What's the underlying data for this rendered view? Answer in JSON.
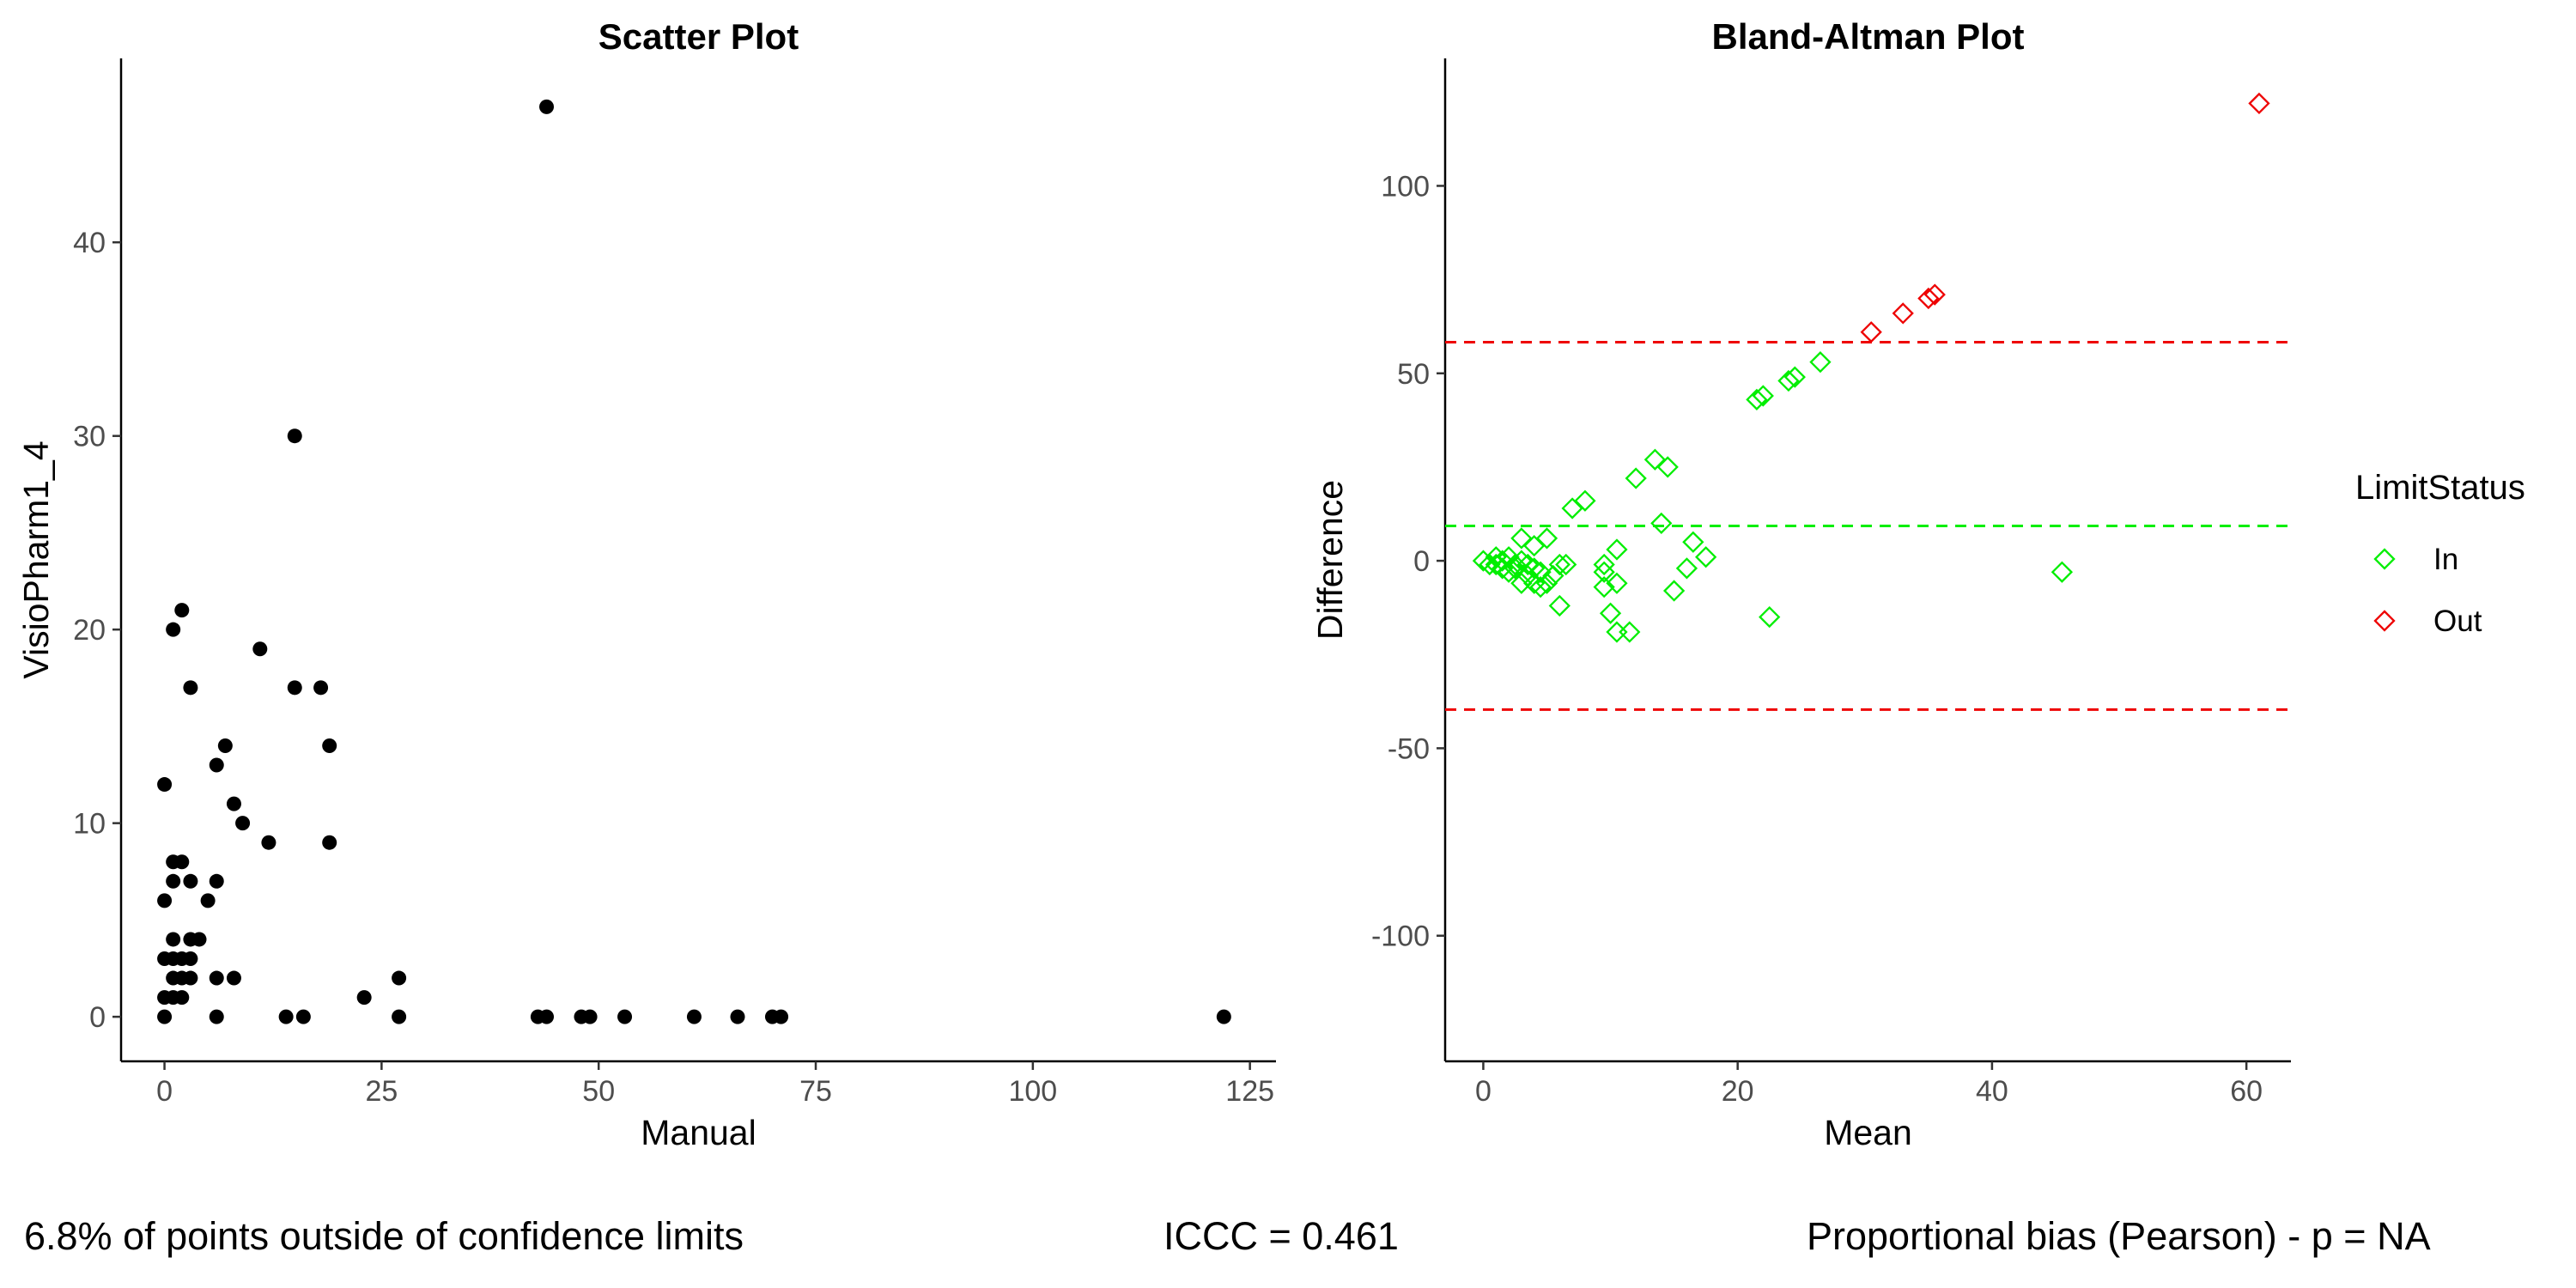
{
  "chart_data": [
    {
      "type": "scatter",
      "title": "Scatter Plot",
      "xlabel": "Manual",
      "ylabel": "VisioPharm1_4",
      "xlim": [
        -5,
        128
      ],
      "ylim": [
        -2.3,
        49.5
      ],
      "xticks": [
        "0",
        "25",
        "50",
        "75",
        "100",
        "125"
      ],
      "yticks": [
        "0",
        "10",
        "20",
        "30",
        "40"
      ],
      "grid": false,
      "marker": "filled circle",
      "color": "#000000",
      "points": [
        {
          "x": 0,
          "y": 0
        },
        {
          "x": 0,
          "y": 1
        },
        {
          "x": 0,
          "y": 3
        },
        {
          "x": 0,
          "y": 6
        },
        {
          "x": 0,
          "y": 12
        },
        {
          "x": 1,
          "y": 1
        },
        {
          "x": 1,
          "y": 2
        },
        {
          "x": 1,
          "y": 3
        },
        {
          "x": 1,
          "y": 4
        },
        {
          "x": 1,
          "y": 7
        },
        {
          "x": 1,
          "y": 8
        },
        {
          "x": 1,
          "y": 20
        },
        {
          "x": 2,
          "y": 1
        },
        {
          "x": 2,
          "y": 2
        },
        {
          "x": 2,
          "y": 3
        },
        {
          "x": 2,
          "y": 8
        },
        {
          "x": 2,
          "y": 21
        },
        {
          "x": 3,
          "y": 2
        },
        {
          "x": 3,
          "y": 3
        },
        {
          "x": 3,
          "y": 4
        },
        {
          "x": 3,
          "y": 7
        },
        {
          "x": 3,
          "y": 17
        },
        {
          "x": 4,
          "y": 4
        },
        {
          "x": 5,
          "y": 6
        },
        {
          "x": 6,
          "y": 0
        },
        {
          "x": 6,
          "y": 2
        },
        {
          "x": 6,
          "y": 7
        },
        {
          "x": 6,
          "y": 13
        },
        {
          "x": 7,
          "y": 14
        },
        {
          "x": 8,
          "y": 2
        },
        {
          "x": 8,
          "y": 11
        },
        {
          "x": 9,
          "y": 10
        },
        {
          "x": 11,
          "y": 19
        },
        {
          "x": 12,
          "y": 9
        },
        {
          "x": 14,
          "y": 0
        },
        {
          "x": 15,
          "y": 17
        },
        {
          "x": 15,
          "y": 30
        },
        {
          "x": 16,
          "y": 0
        },
        {
          "x": 18,
          "y": 17
        },
        {
          "x": 19,
          "y": 9
        },
        {
          "x": 19,
          "y": 14
        },
        {
          "x": 23,
          "y": 1
        },
        {
          "x": 27,
          "y": 0
        },
        {
          "x": 27,
          "y": 2
        },
        {
          "x": 43,
          "y": 0
        },
        {
          "x": 44,
          "y": 0
        },
        {
          "x": 44,
          "y": 47
        },
        {
          "x": 48,
          "y": 0
        },
        {
          "x": 49,
          "y": 0
        },
        {
          "x": 53,
          "y": 0
        },
        {
          "x": 61,
          "y": 0
        },
        {
          "x": 66,
          "y": 0
        },
        {
          "x": 70,
          "y": 0
        },
        {
          "x": 71,
          "y": 0
        },
        {
          "x": 122,
          "y": 0
        }
      ]
    },
    {
      "type": "scatter",
      "title": "Bland-Altman Plot",
      "xlabel": "Mean",
      "ylabel": "Difference",
      "xlim": [
        -3,
        63.5
      ],
      "ylim": [
        -133.5,
        134
      ],
      "xticks": [
        "0",
        "20",
        "40",
        "60"
      ],
      "yticks": [
        "-100",
        "-50",
        "0",
        "50",
        "100"
      ],
      "grid": false,
      "marker": "open diamond",
      "legend": {
        "title": "LimitStatus",
        "placement": "right",
        "entries": [
          {
            "label": "In",
            "color": "#00ee00"
          },
          {
            "label": "Out",
            "color": "#ee0000"
          }
        ]
      },
      "reference_lines": [
        {
          "y": 58.3,
          "color": "#ee0000",
          "style": "dashed"
        },
        {
          "y": 9.3,
          "color": "#00ee00",
          "style": "dashed"
        },
        {
          "y": -39.7,
          "color": "#ee0000",
          "style": "dashed"
        }
      ],
      "series": [
        {
          "name": "In",
          "color": "#00ee00",
          "points": [
            {
              "x": 0,
              "y": 0
            },
            {
              "x": 0.5,
              "y": -1
            },
            {
              "x": 1,
              "y": 1
            },
            {
              "x": 1,
              "y": -1
            },
            {
              "x": 1.5,
              "y": 0
            },
            {
              "x": 1.5,
              "y": -2
            },
            {
              "x": 2,
              "y": 1
            },
            {
              "x": 2,
              "y": -3
            },
            {
              "x": 2.5,
              "y": -1
            },
            {
              "x": 2.5,
              "y": -2
            },
            {
              "x": 3,
              "y": 0
            },
            {
              "x": 3,
              "y": 6
            },
            {
              "x": 3,
              "y": -6
            },
            {
              "x": 3.5,
              "y": -1
            },
            {
              "x": 3.5,
              "y": -4
            },
            {
              "x": 4,
              "y": 4
            },
            {
              "x": 4,
              "y": -2
            },
            {
              "x": 4,
              "y": -6
            },
            {
              "x": 4.5,
              "y": -3
            },
            {
              "x": 4.5,
              "y": -7
            },
            {
              "x": 5,
              "y": -6
            },
            {
              "x": 5,
              "y": 6
            },
            {
              "x": 5.5,
              "y": -4
            },
            {
              "x": 6,
              "y": -12
            },
            {
              "x": 6,
              "y": -1
            },
            {
              "x": 6.5,
              "y": -1
            },
            {
              "x": 7,
              "y": 14
            },
            {
              "x": 8,
              "y": 16
            },
            {
              "x": 9.5,
              "y": -1
            },
            {
              "x": 9.5,
              "y": -3
            },
            {
              "x": 9.5,
              "y": -7
            },
            {
              "x": 10,
              "y": -14
            },
            {
              "x": 10.5,
              "y": -6
            },
            {
              "x": 10.5,
              "y": 3
            },
            {
              "x": 10.5,
              "y": -19
            },
            {
              "x": 11.5,
              "y": -19
            },
            {
              "x": 12,
              "y": 22
            },
            {
              "x": 13.5,
              "y": 27
            },
            {
              "x": 14,
              "y": 10
            },
            {
              "x": 14.5,
              "y": 25
            },
            {
              "x": 15,
              "y": -8
            },
            {
              "x": 16,
              "y": -2
            },
            {
              "x": 16.5,
              "y": 5
            },
            {
              "x": 17.5,
              "y": 1
            },
            {
              "x": 21.5,
              "y": 43
            },
            {
              "x": 22,
              "y": 44
            },
            {
              "x": 22.5,
              "y": -15
            },
            {
              "x": 24,
              "y": 48
            },
            {
              "x": 24.5,
              "y": 49
            },
            {
              "x": 26.5,
              "y": 53
            },
            {
              "x": 45.5,
              "y": -3
            }
          ]
        },
        {
          "name": "Out",
          "color": "#ee0000",
          "points": [
            {
              "x": 30.5,
              "y": 61
            },
            {
              "x": 33,
              "y": 66
            },
            {
              "x": 35,
              "y": 70
            },
            {
              "x": 35.5,
              "y": 71
            },
            {
              "x": 61,
              "y": 122
            }
          ]
        }
      ]
    }
  ],
  "footer": {
    "left": "6.8% of points outside of confidence limits",
    "center": "ICCC = 0.461",
    "right": "Proportional bias (Pearson) - p = NA"
  }
}
